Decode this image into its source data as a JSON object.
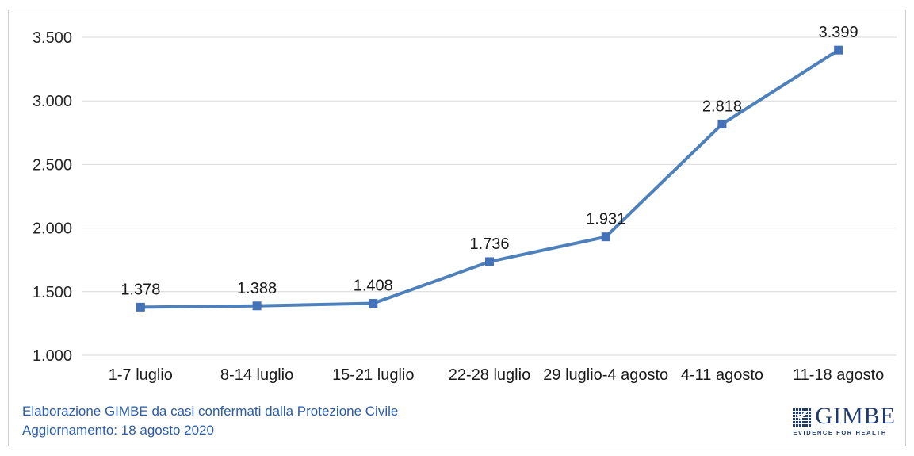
{
  "chart_data": {
    "type": "line",
    "title": "",
    "xlabel": "",
    "ylabel": "",
    "categories": [
      "1-7 luglio",
      "8-14 luglio",
      "15-21 luglio",
      "22-28 luglio",
      "29 luglio-4 agosto",
      "4-11 agosto",
      "11-18 agosto"
    ],
    "values": [
      1378,
      1388,
      1408,
      1736,
      1931,
      2818,
      3399
    ],
    "value_labels": [
      "1.378",
      "1.388",
      "1.408",
      "1.736",
      "1.931",
      "2.818",
      "3.399"
    ],
    "ylim": [
      1000,
      3500
    ],
    "ytick_values": [
      1000,
      1500,
      2000,
      2500,
      3000,
      3500
    ],
    "ytick_labels": [
      "1.000",
      "1.500",
      "2.000",
      "2.500",
      "3.000",
      "3.500"
    ],
    "grid": true,
    "legend": "none",
    "marker": "square",
    "line_color": "#4e80bc",
    "marker_color": "#4472b8",
    "gridline_color": "#d9d9d9"
  },
  "footer": {
    "line1": "Elaborazione GIMBE da casi confermati dalla Protezione Civile",
    "line2": "Aggiornamento: 18 agosto 2020"
  },
  "logo": {
    "wordmark": "GIMBE",
    "tagline": "EVIDENCE FOR HEALTH"
  },
  "colors": {
    "axis_text": "#262626",
    "data_label": "#1a1a1a",
    "footer_text": "#2a5ca8",
    "logo_navy": "#1e3a6e",
    "frame_border": "#d0cece"
  }
}
